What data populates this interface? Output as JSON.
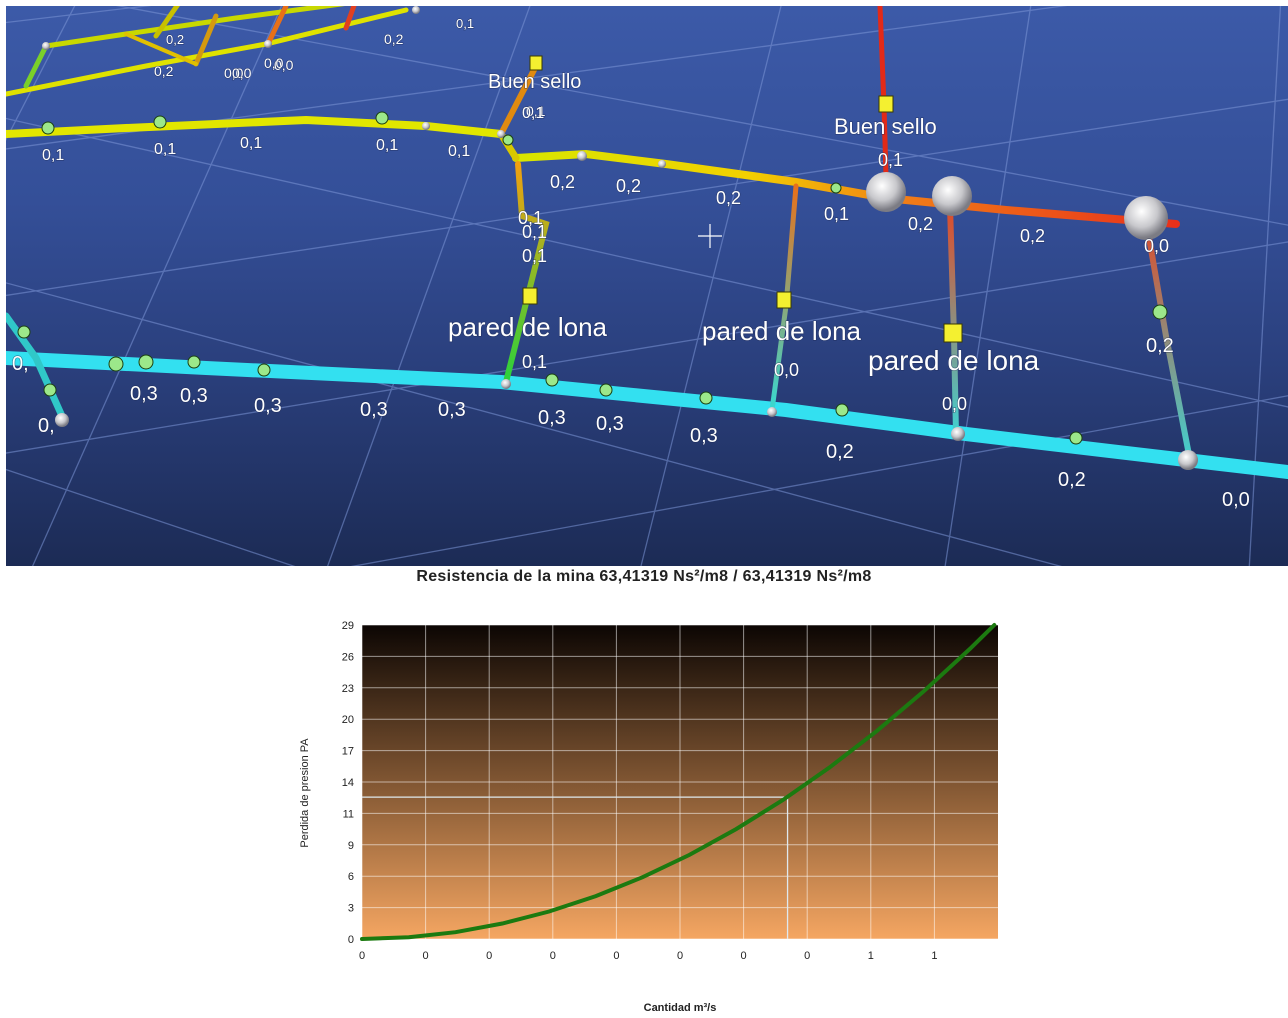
{
  "viewport": {
    "branch_labels": [
      "0,2",
      "0,0",
      "0,0",
      "0,1",
      "0,2",
      "0,2",
      "0,0",
      "0,0",
      "0,1",
      "0,1",
      "0,1",
      "0,1",
      "0,1",
      "0,1",
      "0,1",
      "0,2",
      "0,2",
      "0,2",
      "0,1",
      "0,2",
      "0,2",
      "0,0",
      "0,1",
      "0,1",
      "0,1",
      "0,0",
      "0,0",
      "0,2",
      "0,1",
      "0,3",
      "0,3",
      "0,3",
      "0,3",
      "0,3",
      "0,3",
      "0,3",
      "0,3",
      "0,2",
      "0,2",
      "0,0",
      "0,",
      "0,",
      "0,1"
    ],
    "device_labels": [
      "Buen sello",
      "Buen sello",
      "pared de lona",
      "pared de lona",
      "pared de lona"
    ]
  },
  "chart": {
    "title": "Resistencia de la mina 63,41319 Ns²/m8 / 63,41319 Ns²/m8",
    "y_tick_labels": [
      "29",
      "26",
      "23",
      "20",
      "17",
      "14",
      "11",
      "9",
      "6",
      "3",
      "0"
    ],
    "x_tick_labels": [
      "0",
      "0",
      "0",
      "0",
      "0",
      "0",
      "0",
      "0",
      "1",
      "1"
    ]
  },
  "chart_data": {
    "type": "line",
    "title": "Resistencia de la mina 63,41319 Ns²/m8 / 63,41319 Ns²/m8",
    "xlabel": "Cantidad  m³/s",
    "ylabel": "Perdida de presion  PA",
    "ylim": [
      0,
      29
    ],
    "xlim": [
      0,
      0.68
    ],
    "resistance": 63.41319,
    "series": [
      {
        "x": [
          0,
          0.05,
          0.1,
          0.15,
          0.2,
          0.25,
          0.3,
          0.35,
          0.4,
          0.45,
          0.5,
          0.55,
          0.6,
          0.65,
          0.676
        ],
        "values": [
          0,
          0.16,
          0.63,
          1.43,
          2.54,
          3.96,
          5.71,
          7.77,
          10.15,
          12.84,
          15.85,
          19.18,
          22.83,
          26.79,
          29.0
        ]
      }
    ],
    "operating_point": {
      "x": 0.455,
      "y": 13.1
    },
    "grid": true,
    "line_color": "#1c7a10",
    "background_gradient": [
      "#0c0603",
      "#f5a662"
    ]
  }
}
